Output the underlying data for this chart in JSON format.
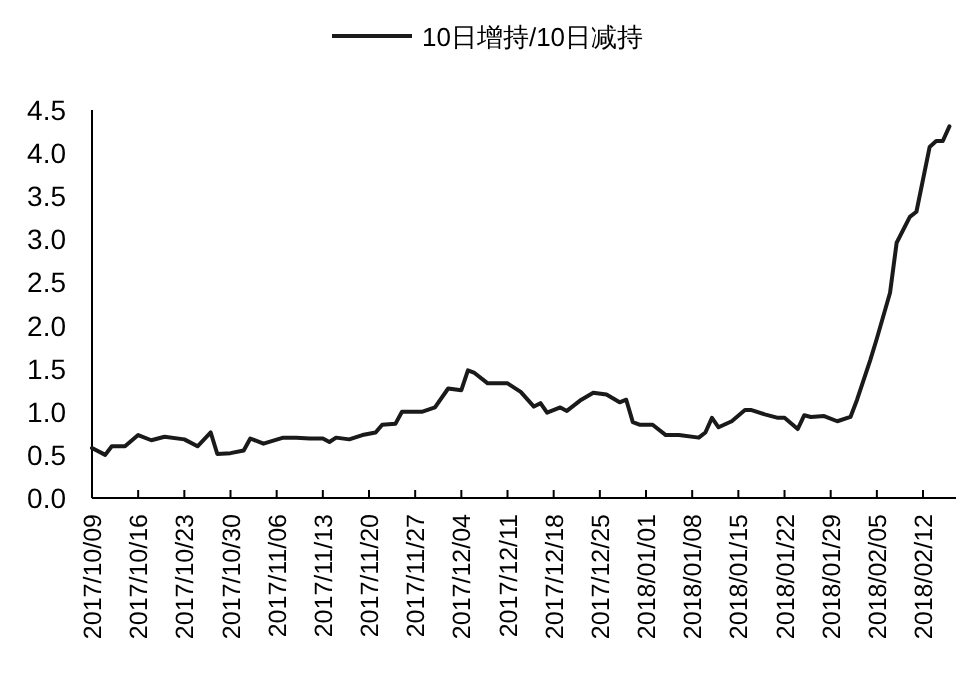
{
  "chart_data": {
    "type": "line",
    "legend": "top",
    "xlim": [
      "2017-10-09",
      "2018-02-17"
    ],
    "ylim": [
      0,
      4.5
    ],
    "yticks": [
      {
        "value": 0,
        "label": "0.0"
      },
      {
        "value": 0.5,
        "label": "0.5"
      },
      {
        "value": 1,
        "label": "1.0"
      },
      {
        "value": 1.5,
        "label": "1.5"
      },
      {
        "value": 2,
        "label": "2.0"
      },
      {
        "value": 2.5,
        "label": "2.5"
      },
      {
        "value": 3,
        "label": "3.0"
      },
      {
        "value": 3.5,
        "label": "3.5"
      },
      {
        "value": 4,
        "label": "4.0"
      },
      {
        "value": 4.5,
        "label": "4.5"
      }
    ],
    "xticks": [
      {
        "value": "2017-10-09",
        "label": "2017/10/09"
      },
      {
        "value": "2017-10-16",
        "label": "2017/10/16"
      },
      {
        "value": "2017-10-23",
        "label": "2017/10/23"
      },
      {
        "value": "2017-10-30",
        "label": "2017/10/30"
      },
      {
        "value": "2017-11-06",
        "label": "2017/11/06"
      },
      {
        "value": "2017-11-13",
        "label": "2017/11/13"
      },
      {
        "value": "2017-11-20",
        "label": "2017/11/20"
      },
      {
        "value": "2017-11-27",
        "label": "2017/11/27"
      },
      {
        "value": "2017-12-04",
        "label": "2017/12/04"
      },
      {
        "value": "2017-12-11",
        "label": "2017/12/11"
      },
      {
        "value": "2017-12-18",
        "label": "2017/12/18"
      },
      {
        "value": "2017-12-25",
        "label": "2017/12/25"
      },
      {
        "value": "2018-01-01",
        "label": "2018/01/01"
      },
      {
        "value": "2018-01-08",
        "label": "2018/01/08"
      },
      {
        "value": "2018-01-15",
        "label": "2018/01/15"
      },
      {
        "value": "2018-01-22",
        "label": "2018/01/22"
      },
      {
        "value": "2018-01-29",
        "label": "2018/01/29"
      },
      {
        "value": "2018-02-05",
        "label": "2018/02/05"
      },
      {
        "value": "2018-02-12",
        "label": "2018/02/12"
      }
    ],
    "series": [
      {
        "name": "10日增持/10日减持",
        "color": "#1a1a1a",
        "x": [
          "2017-10-09",
          "2017-10-11",
          "2017-10-12",
          "2017-10-14",
          "2017-10-16",
          "2017-10-18",
          "2017-10-20",
          "2017-10-23",
          "2017-10-25",
          "2017-10-27",
          "2017-10-28",
          "2017-10-30",
          "2017-11-01",
          "2017-11-02",
          "2017-11-04",
          "2017-11-07",
          "2017-11-09",
          "2017-11-11",
          "2017-11-13",
          "2017-11-14",
          "2017-11-15",
          "2017-11-17",
          "2017-11-19",
          "2017-11-21",
          "2017-11-22",
          "2017-11-24",
          "2017-11-25",
          "2017-11-28",
          "2017-11-30",
          "2017-12-02",
          "2017-12-04",
          "2017-12-05",
          "2017-12-06",
          "2017-12-08",
          "2017-12-11",
          "2017-12-13",
          "2017-12-15",
          "2017-12-16",
          "2017-12-17",
          "2017-12-19",
          "2017-12-20",
          "2017-12-22",
          "2017-12-24",
          "2017-12-26",
          "2017-12-28",
          "2017-12-29",
          "2017-12-30",
          "2017-12-31",
          "2018-01-02",
          "2018-01-04",
          "2018-01-06",
          "2018-01-09",
          "2018-01-10",
          "2018-01-11",
          "2018-01-12",
          "2018-01-14",
          "2018-01-16",
          "2018-01-17",
          "2018-01-19",
          "2018-01-21",
          "2018-01-22",
          "2018-01-24",
          "2018-01-25",
          "2018-01-26",
          "2018-01-28",
          "2018-01-30",
          "2018-02-01",
          "2018-02-02",
          "2018-02-04",
          "2018-02-05",
          "2018-02-07",
          "2018-02-08",
          "2018-02-10",
          "2018-02-11",
          "2018-02-13",
          "2018-02-14",
          "2018-02-15",
          "2018-02-16"
        ],
        "values": [
          0.58,
          0.5,
          0.6,
          0.6,
          0.73,
          0.67,
          0.71,
          0.68,
          0.6,
          0.76,
          0.51,
          0.52,
          0.55,
          0.69,
          0.63,
          0.7,
          0.7,
          0.69,
          0.69,
          0.65,
          0.7,
          0.68,
          0.73,
          0.76,
          0.85,
          0.86,
          1.0,
          1.0,
          1.05,
          1.27,
          1.25,
          1.48,
          1.45,
          1.33,
          1.33,
          1.23,
          1.06,
          1.1,
          0.99,
          1.05,
          1.01,
          1.13,
          1.22,
          1.2,
          1.11,
          1.14,
          0.88,
          0.85,
          0.85,
          0.73,
          0.73,
          0.7,
          0.76,
          0.93,
          0.82,
          0.89,
          1.02,
          1.02,
          0.97,
          0.93,
          0.93,
          0.8,
          0.96,
          0.94,
          0.95,
          0.89,
          0.94,
          1.14,
          1.6,
          1.85,
          2.38,
          2.96,
          3.26,
          3.32,
          4.07,
          4.14,
          4.14,
          4.31
        ]
      }
    ]
  }
}
